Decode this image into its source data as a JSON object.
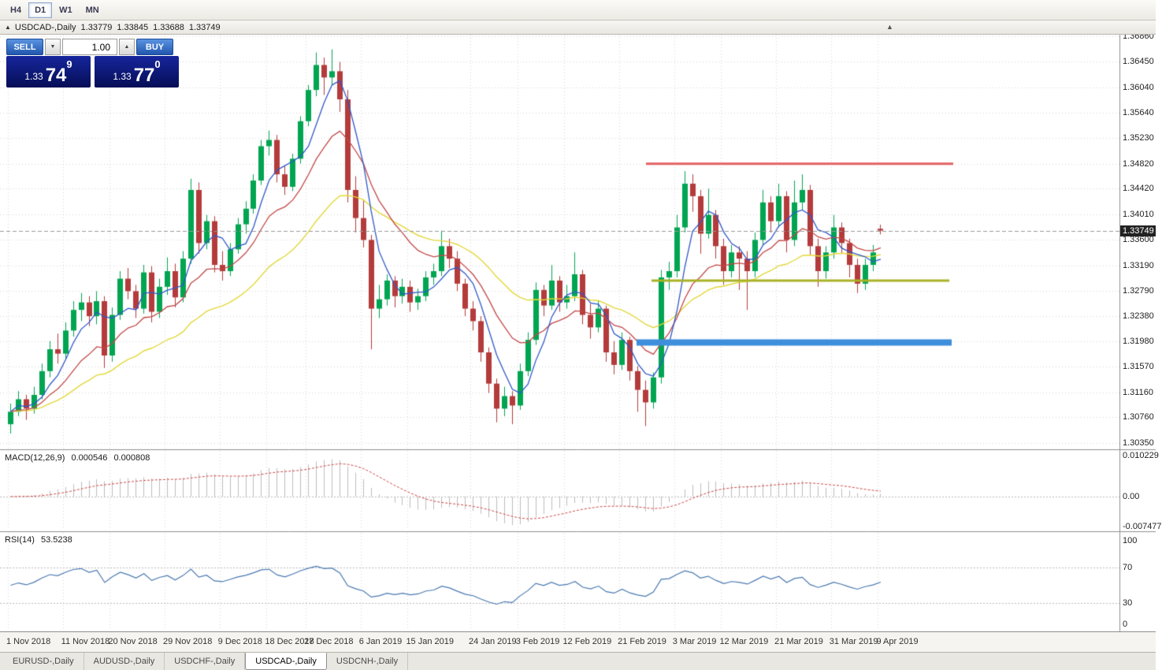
{
  "toolbar": {
    "timeframes": [
      {
        "label": "H4",
        "active": false
      },
      {
        "label": "D1",
        "active": true
      },
      {
        "label": "W1",
        "active": false
      },
      {
        "label": "MN",
        "active": false
      }
    ]
  },
  "title_bar": {
    "symbol": "USDCAD-,Daily",
    "open": "1.33779",
    "high": "1.33845",
    "low": "1.33688",
    "close": "1.33749"
  },
  "trade_panel": {
    "sell_label": "SELL",
    "buy_label": "BUY",
    "volume": "1.00",
    "sell_price": {
      "base": "1.33",
      "pips": "74",
      "pip_sup": "9"
    },
    "buy_price": {
      "base": "1.33",
      "pips": "77",
      "pip_sup": "0"
    }
  },
  "price_scale": {
    "labels": [
      "1.36860",
      "1.36450",
      "1.36040",
      "1.35640",
      "1.35230",
      "1.34820",
      "1.34420",
      "1.34010",
      "1.33600",
      "1.33190",
      "1.32790",
      "1.32380",
      "1.31980",
      "1.31570",
      "1.31160",
      "1.30760",
      "1.30350"
    ],
    "current_price": "1.33749"
  },
  "indicators": {
    "macd": {
      "label": "MACD(12,26,9)",
      "value_main": "0.000546",
      "value_signal": "0.000808",
      "scale": [
        "0.010229",
        "0.00",
        "-0.007477"
      ]
    },
    "rsi": {
      "label": "RSI(14)",
      "value": "53.5238",
      "scale": [
        "100",
        "70",
        "30",
        "0"
      ],
      "levels": [
        70,
        30
      ]
    }
  },
  "time_axis": {
    "labels": [
      {
        "text": "1 Nov 2018",
        "bar": 0
      },
      {
        "text": "11 Nov 2018",
        "bar": 7
      },
      {
        "text": "20 Nov 2018",
        "bar": 13
      },
      {
        "text": "29 Nov 2018",
        "bar": 20
      },
      {
        "text": "9 Dec 2018",
        "bar": 27
      },
      {
        "text": "18 Dec 2018",
        "bar": 33
      },
      {
        "text": "27 Dec 2018",
        "bar": 38
      },
      {
        "text": "6 Jan 2019",
        "bar": 45
      },
      {
        "text": "15 Jan 2019",
        "bar": 51
      },
      {
        "text": "24 Jan 2019",
        "bar": 59
      },
      {
        "text": "3 Feb 2019",
        "bar": 65
      },
      {
        "text": "12 Feb 2019",
        "bar": 71
      },
      {
        "text": "21 Feb 2019",
        "bar": 78
      },
      {
        "text": "3 Mar 2019",
        "bar": 85
      },
      {
        "text": "12 Mar 2019",
        "bar": 91
      },
      {
        "text": "21 Mar 2019",
        "bar": 98
      },
      {
        "text": "31 Mar 2019",
        "bar": 105
      },
      {
        "text": "9 Apr 2019",
        "bar": 111
      }
    ]
  },
  "symbol_tabs": [
    {
      "label": "EURUSD-,Daily",
      "active": false
    },
    {
      "label": "AUDUSD-,Daily",
      "active": false
    },
    {
      "label": "USDCHF-,Daily",
      "active": false
    },
    {
      "label": "USDCAD-,Daily",
      "active": true
    },
    {
      "label": "USDCNH-,Daily",
      "active": false
    }
  ],
  "colors": {
    "bull": "#00A551",
    "bear": "#B43B3B",
    "ma_fast": "#3058C8",
    "ma_medium": "#C24848",
    "ma_slow": "#E2D83A",
    "macd_hist": "#BDBDBD",
    "macd_signal": "#CC4444",
    "rsi_line": "#4878B0",
    "grid": "rgba(165,165,165,0.45)",
    "price_line": "#9a9a9a"
  },
  "chart_data": {
    "type": "candlestick",
    "symbol": "USDCAD",
    "timeframe": "Daily",
    "ylim": [
      1.30249,
      1.36885
    ],
    "macd_params": [
      12,
      26,
      9
    ],
    "rsi_period": 14,
    "moving_averages": [
      {
        "name": "fast",
        "period": 5,
        "type": "sma"
      },
      {
        "name": "medium",
        "period": 13,
        "type": "ema"
      },
      {
        "name": "slow",
        "period": 30,
        "type": "ema"
      }
    ],
    "hlines": [
      {
        "price": 1.3482,
        "color": "#E36060",
        "width": 3,
        "x1": 820,
        "x2": 1210
      },
      {
        "price": 1.3295,
        "color": "#A8B225",
        "width": 3,
        "x1": 827,
        "x2": 1205
      },
      {
        "price": 1.3196,
        "color": "#3E8EDB",
        "width": 8,
        "x1": 808,
        "x2": 1208
      }
    ],
    "ohlc": [
      [
        1.3065,
        1.3098,
        1.305,
        1.3085
      ],
      [
        1.3085,
        1.3118,
        1.3078,
        1.3105
      ],
      [
        1.3105,
        1.3112,
        1.3072,
        1.309
      ],
      [
        1.309,
        1.3125,
        1.3082,
        1.3112
      ],
      [
        1.3112,
        1.3162,
        1.3105,
        1.315
      ],
      [
        1.315,
        1.3198,
        1.314,
        1.3185
      ],
      [
        1.3185,
        1.321,
        1.3162,
        1.3178
      ],
      [
        1.3178,
        1.3228,
        1.317,
        1.3215
      ],
      [
        1.3215,
        1.3262,
        1.3205,
        1.3248
      ],
      [
        1.3248,
        1.3275,
        1.323,
        1.326
      ],
      [
        1.326,
        1.327,
        1.3222,
        1.3238
      ],
      [
        1.3238,
        1.3278,
        1.3225,
        1.3262
      ],
      [
        1.3262,
        1.327,
        1.3155,
        1.3175
      ],
      [
        1.3175,
        1.3252,
        1.3165,
        1.324
      ],
      [
        1.324,
        1.331,
        1.3232,
        1.3298
      ],
      [
        1.3298,
        1.3315,
        1.3265,
        1.3278
      ],
      [
        1.3278,
        1.3288,
        1.3235,
        1.325
      ],
      [
        1.325,
        1.332,
        1.3242,
        1.3308
      ],
      [
        1.3308,
        1.3318,
        1.3228,
        1.3245
      ],
      [
        1.3245,
        1.3298,
        1.3235,
        1.3285
      ],
      [
        1.3285,
        1.3332,
        1.3272,
        1.331
      ],
      [
        1.331,
        1.3322,
        1.3252,
        1.3268
      ],
      [
        1.3268,
        1.3342,
        1.326,
        1.333
      ],
      [
        1.333,
        1.3458,
        1.3322,
        1.344
      ],
      [
        1.344,
        1.3452,
        1.3338,
        1.3355
      ],
      [
        1.3355,
        1.34,
        1.3345,
        1.339
      ],
      [
        1.339,
        1.3398,
        1.3308,
        1.332
      ],
      [
        1.332,
        1.3342,
        1.3295,
        1.331
      ],
      [
        1.331,
        1.3355,
        1.3302,
        1.3345
      ],
      [
        1.3345,
        1.3395,
        1.3338,
        1.3385
      ],
      [
        1.3385,
        1.3422,
        1.337,
        1.341
      ],
      [
        1.341,
        1.3465,
        1.3402,
        1.3455
      ],
      [
        1.3455,
        1.352,
        1.3448,
        1.351
      ],
      [
        1.351,
        1.3535,
        1.3495,
        1.352
      ],
      [
        1.352,
        1.3528,
        1.3452,
        1.3465
      ],
      [
        1.3465,
        1.3478,
        1.3432,
        1.3445
      ],
      [
        1.3445,
        1.3498,
        1.3438,
        1.349
      ],
      [
        1.349,
        1.3558,
        1.3482,
        1.355
      ],
      [
        1.355,
        1.3608,
        1.3542,
        1.36
      ],
      [
        1.36,
        1.366,
        1.359,
        1.364
      ],
      [
        1.364,
        1.3652,
        1.3592,
        1.362
      ],
      [
        1.362,
        1.3665,
        1.3608,
        1.363
      ],
      [
        1.363,
        1.3645,
        1.3565,
        1.3585
      ],
      [
        1.3585,
        1.36,
        1.342,
        1.344
      ],
      [
        1.344,
        1.3462,
        1.3372,
        1.3395
      ],
      [
        1.3395,
        1.3425,
        1.3348,
        1.336
      ],
      [
        1.336,
        1.3368,
        1.3185,
        1.325
      ],
      [
        1.325,
        1.3288,
        1.3235,
        1.3265
      ],
      [
        1.3265,
        1.3305,
        1.3255,
        1.3295
      ],
      [
        1.3295,
        1.3302,
        1.3252,
        1.327
      ],
      [
        1.327,
        1.3298,
        1.3258,
        1.3285
      ],
      [
        1.3285,
        1.3295,
        1.3245,
        1.326
      ],
      [
        1.326,
        1.3282,
        1.3248,
        1.327
      ],
      [
        1.327,
        1.331,
        1.3262,
        1.33
      ],
      [
        1.33,
        1.3322,
        1.3288,
        1.331
      ],
      [
        1.331,
        1.3375,
        1.3302,
        1.335
      ],
      [
        1.335,
        1.3362,
        1.3315,
        1.333
      ],
      [
        1.333,
        1.3342,
        1.3278,
        1.329
      ],
      [
        1.329,
        1.3298,
        1.3238,
        1.325
      ],
      [
        1.325,
        1.3262,
        1.3215,
        1.323
      ],
      [
        1.323,
        1.3238,
        1.3165,
        1.318
      ],
      [
        1.318,
        1.3188,
        1.3115,
        1.313
      ],
      [
        1.313,
        1.3138,
        1.3068,
        1.309
      ],
      [
        1.309,
        1.3125,
        1.3078,
        1.311
      ],
      [
        1.311,
        1.3118,
        1.3065,
        1.3095
      ],
      [
        1.3095,
        1.3162,
        1.3088,
        1.315
      ],
      [
        1.315,
        1.3212,
        1.3142,
        1.32
      ],
      [
        1.32,
        1.3292,
        1.3192,
        1.328
      ],
      [
        1.328,
        1.3288,
        1.3238,
        1.3255
      ],
      [
        1.3255,
        1.332,
        1.3248,
        1.3295
      ],
      [
        1.3295,
        1.3302,
        1.3245,
        1.326
      ],
      [
        1.326,
        1.3288,
        1.325,
        1.327
      ],
      [
        1.327,
        1.334,
        1.3262,
        1.3305
      ],
      [
        1.3305,
        1.3312,
        1.3225,
        1.324
      ],
      [
        1.324,
        1.3258,
        1.3202,
        1.322
      ],
      [
        1.322,
        1.3262,
        1.3212,
        1.325
      ],
      [
        1.325,
        1.3255,
        1.3165,
        1.318
      ],
      [
        1.318,
        1.3198,
        1.3145,
        1.316
      ],
      [
        1.316,
        1.3212,
        1.3152,
        1.32
      ],
      [
        1.32,
        1.3205,
        1.3135,
        1.315
      ],
      [
        1.315,
        1.3158,
        1.3085,
        1.312
      ],
      [
        1.312,
        1.3135,
        1.3062,
        1.31
      ],
      [
        1.31,
        1.3148,
        1.309,
        1.314
      ],
      [
        1.314,
        1.3312,
        1.313,
        1.33
      ],
      [
        1.33,
        1.3325,
        1.328,
        1.331
      ],
      [
        1.331,
        1.34,
        1.33,
        1.338
      ],
      [
        1.338,
        1.347,
        1.3372,
        1.345
      ],
      [
        1.345,
        1.3465,
        1.3405,
        1.343
      ],
      [
        1.343,
        1.344,
        1.3338,
        1.337
      ],
      [
        1.337,
        1.3442,
        1.3362,
        1.34
      ],
      [
        1.34,
        1.3408,
        1.333,
        1.335
      ],
      [
        1.335,
        1.3362,
        1.3288,
        1.331
      ],
      [
        1.331,
        1.3352,
        1.33,
        1.334
      ],
      [
        1.334,
        1.335,
        1.328,
        1.333
      ],
      [
        1.333,
        1.3342,
        1.3248,
        1.331
      ],
      [
        1.331,
        1.3372,
        1.33,
        1.336
      ],
      [
        1.336,
        1.344,
        1.3352,
        1.342
      ],
      [
        1.342,
        1.343,
        1.3372,
        1.339
      ],
      [
        1.339,
        1.345,
        1.338,
        1.343
      ],
      [
        1.343,
        1.3438,
        1.334,
        1.336
      ],
      [
        1.336,
        1.3455,
        1.335,
        1.342
      ],
      [
        1.342,
        1.3465,
        1.3408,
        1.344
      ],
      [
        1.344,
        1.3448,
        1.3335,
        1.335
      ],
      [
        1.335,
        1.3362,
        1.3285,
        1.331
      ],
      [
        1.331,
        1.335,
        1.3298,
        1.334
      ],
      [
        1.334,
        1.34,
        1.333,
        1.338
      ],
      [
        1.338,
        1.3388,
        1.3338,
        1.3355
      ],
      [
        1.3355,
        1.3362,
        1.33,
        1.332
      ],
      [
        1.332,
        1.333,
        1.3275,
        1.329
      ],
      [
        1.329,
        1.333,
        1.328,
        1.332
      ],
      [
        1.332,
        1.3352,
        1.331,
        1.334
      ],
      [
        1.33779,
        1.33845,
        1.33688,
        1.33749
      ]
    ]
  }
}
